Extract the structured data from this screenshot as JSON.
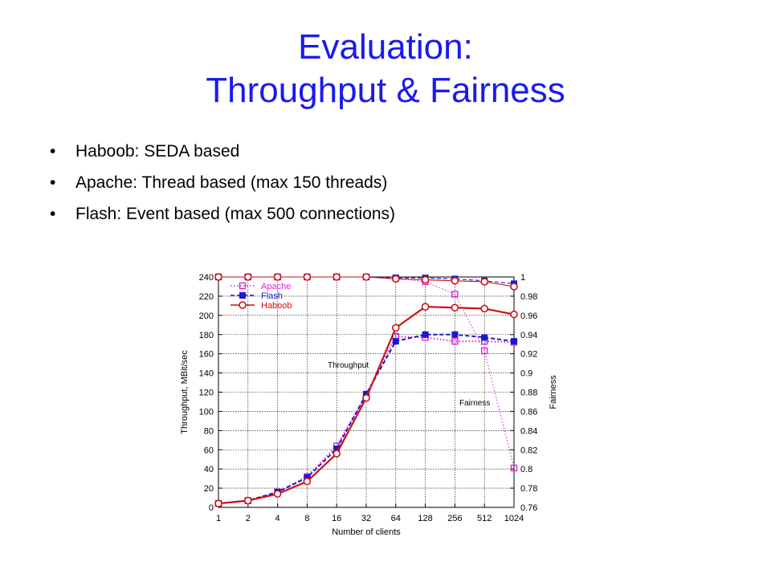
{
  "slide": {
    "title_line1": "Evaluation:",
    "title_line2": "Throughput & Fairness",
    "bullet_char": "•",
    "bullets": [
      "Haboob: SEDA based",
      "Apache: Thread based (max 150 threads)",
      "Flash: Event based (max 500 connections)"
    ]
  },
  "chart_data": {
    "type": "line",
    "xlabel": "Number of clients",
    "ylabel": "Throughput, MBit/sec",
    "y2label": "Fairness",
    "categories": [
      "1",
      "2",
      "4",
      "8",
      "16",
      "32",
      "64",
      "128",
      "256",
      "512",
      "1024"
    ],
    "ylim": [
      0,
      240
    ],
    "y2lim": [
      0.76,
      1
    ],
    "yticks": [
      "0",
      "20",
      "40",
      "60",
      "80",
      "100",
      "120",
      "140",
      "160",
      "180",
      "200",
      "220",
      "240"
    ],
    "y2ticks": [
      "0.76",
      "0.78",
      "0.8",
      "0.82",
      "0.84",
      "0.86",
      "0.88",
      "0.9",
      "0.92",
      "0.94",
      "0.96",
      "0.98",
      "1"
    ],
    "grid": true,
    "legend_position": "top-left",
    "annotations": {
      "throughput": "Throughput",
      "fairness": "Fairness"
    },
    "series": [
      {
        "name": "Apache",
        "color": "#dd22dd",
        "marker": "square-open",
        "dash": "dotted",
        "throughput": [
          4,
          7,
          16,
          32,
          64,
          117,
          178,
          177,
          173,
          173,
          172
        ],
        "fairness": [
          1.0,
          1.0,
          1.0,
          1.0,
          1.0,
          1.0,
          0.999,
          0.995,
          0.982,
          0.923,
          0.801
        ]
      },
      {
        "name": "Flash",
        "color": "#1a1acc",
        "marker": "square-filled",
        "dash": "dashed",
        "throughput": [
          4,
          7,
          16,
          31,
          61,
          118,
          173,
          180,
          180,
          177,
          173
        ],
        "fairness": [
          1.0,
          1.0,
          1.0,
          1.0,
          1.0,
          1.0,
          0.999,
          0.999,
          0.998,
          0.996,
          0.993
        ]
      },
      {
        "name": "Haboob",
        "color": "#cc1111",
        "marker": "circle-open",
        "dash": "solid",
        "throughput": [
          4,
          7,
          14,
          27,
          56,
          114,
          187,
          209,
          208,
          207,
          201
        ],
        "fairness": [
          1.0,
          1.0,
          1.0,
          1.0,
          1.0,
          1.0,
          0.998,
          0.997,
          0.996,
          0.995,
          0.99
        ]
      }
    ]
  }
}
